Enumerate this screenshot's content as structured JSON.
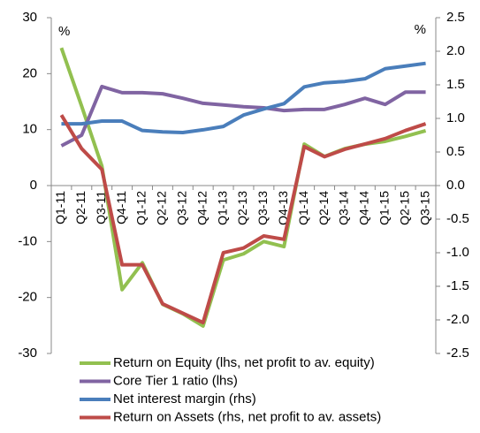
{
  "chart_data": {
    "type": "line",
    "annotations": [
      "%",
      "%"
    ],
    "categories": [
      "Q1-11",
      "Q2-11",
      "Q3-11",
      "Q4-11",
      "Q1-12",
      "Q2-12",
      "Q3-12",
      "Q4-12",
      "Q1-13",
      "Q2-13",
      "Q3-13",
      "Q4-13",
      "Q1-14",
      "Q2-14",
      "Q3-14",
      "Q4-14",
      "Q1-15",
      "Q2-15",
      "Q3-15"
    ],
    "series": [
      {
        "name": "Return on Equity (lhs, net profit to av. equity)",
        "color": "#92c050",
        "axis": "y",
        "values": [
          24.6,
          14.2,
          3.5,
          -18.6,
          -13.8,
          -21.2,
          -22.9,
          -25.1,
          -13.3,
          -12.2,
          -10,
          -10.9,
          7.4,
          5.2,
          6.6,
          7.4,
          7.9,
          8.8,
          9.8
        ]
      },
      {
        "name": "Core Tier 1 ratio (lhs)",
        "color": "#8064a2",
        "axis": "y",
        "values": [
          7.1,
          9,
          17.7,
          16.6,
          16.6,
          16.4,
          15.6,
          14.7,
          14.4,
          14.1,
          13.9,
          13.4,
          13.6,
          13.6,
          14.5,
          15.6,
          14.5,
          16.7,
          16.7
        ]
      },
      {
        "name": "Net interest margin (rhs)",
        "color": "#4a7ebb",
        "axis": "y2",
        "values": [
          0.92,
          0.92,
          0.96,
          0.96,
          0.82,
          0.8,
          0.79,
          0.83,
          0.88,
          1.05,
          1.14,
          1.22,
          1.47,
          1.53,
          1.55,
          1.59,
          1.74,
          1.78,
          1.82
        ]
      },
      {
        "name": "Return on Assets (rhs, net profit to av. assets)",
        "color": "#be4b48",
        "axis": "y2",
        "values": [
          1.05,
          0.55,
          0.24,
          -1.18,
          -1.18,
          -1.76,
          -1.9,
          -2.04,
          -1,
          -0.93,
          -0.75,
          -0.8,
          0.58,
          0.43,
          0.54,
          0.62,
          0.7,
          0.82,
          0.92
        ]
      }
    ],
    "ylim": [
      -30,
      30
    ],
    "yticks": [
      -30,
      -20,
      -10,
      0,
      10,
      20,
      30
    ],
    "y2lim": [
      -2.5,
      2.5
    ],
    "y2ticks": [
      -2.5,
      {
        "value": -2,
        "label": "-2.0"
      },
      -1.5,
      {
        "value": -1,
        "label": "-1.0"
      },
      -0.5,
      {
        "value": 0,
        "label": "0.0"
      },
      0.5,
      {
        "value": 1,
        "label": "1.0"
      },
      1.5,
      {
        "value": 2,
        "label": "2.0"
      },
      2.5
    ],
    "legend": "bottom"
  }
}
